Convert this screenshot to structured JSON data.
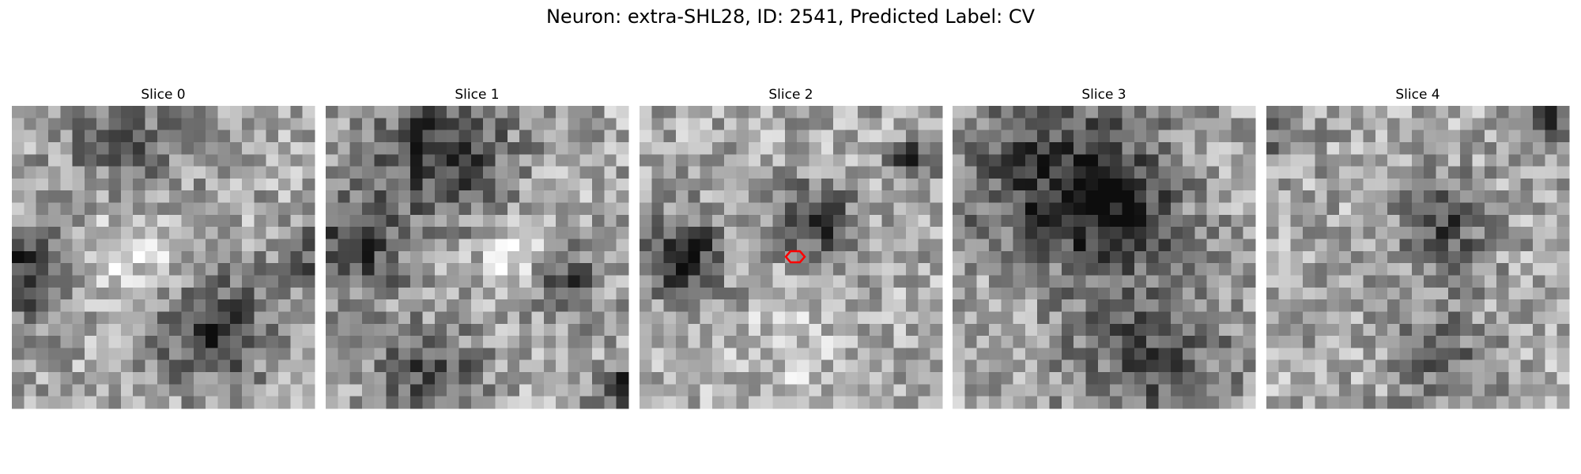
{
  "title": "Neuron: extra-SHL28, ID: 2541, Predicted Label: CV",
  "panels": [
    {
      "title": "Slice 0"
    },
    {
      "title": "Slice 1"
    },
    {
      "title": "Slice 2"
    },
    {
      "title": "Slice 3"
    },
    {
      "title": "Slice 4"
    }
  ]
}
